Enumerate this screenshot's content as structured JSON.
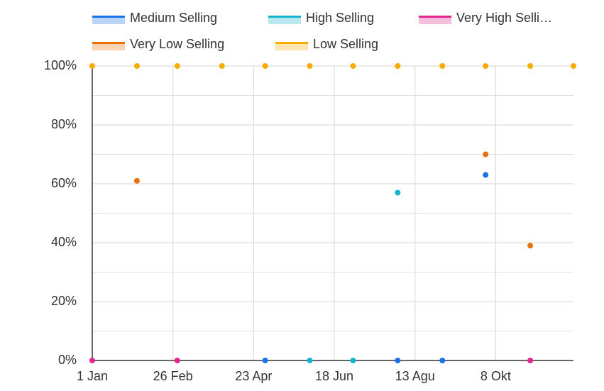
{
  "chart_data": {
    "type": "scatter",
    "x": [
      0,
      31,
      59,
      90,
      120,
      151,
      181,
      212,
      243,
      273,
      304,
      334
    ],
    "xlim": [
      0,
      334
    ],
    "xticks": [
      {
        "value": 0,
        "label": "1 Jan"
      },
      {
        "value": 56,
        "label": "26 Feb"
      },
      {
        "value": 112,
        "label": "23 Apr"
      },
      {
        "value": 168,
        "label": "18 Jun"
      },
      {
        "value": 224,
        "label": "13 Agu"
      },
      {
        "value": 280,
        "label": "8 Okt"
      }
    ],
    "ylim": [
      0,
      100
    ],
    "yticks": [
      {
        "value": 0,
        "label": "0%"
      },
      {
        "value": 20,
        "label": "20%"
      },
      {
        "value": 40,
        "label": "40%"
      },
      {
        "value": 60,
        "label": "60%"
      },
      {
        "value": 80,
        "label": "80%"
      },
      {
        "value": 100,
        "label": "100%"
      }
    ],
    "minor_yticks": [
      10,
      30,
      50,
      70,
      90
    ],
    "grid": true,
    "series": [
      {
        "name": "Medium Selling",
        "color": "#1a73e8",
        "values": [
          null,
          null,
          null,
          null,
          0,
          null,
          null,
          0,
          0,
          63,
          null,
          null
        ]
      },
      {
        "name": "High Selling",
        "color": "#12b5cb",
        "values": [
          null,
          null,
          null,
          null,
          null,
          0,
          0,
          57,
          null,
          null,
          null,
          null
        ]
      },
      {
        "name": "Very High Selli…",
        "color": "#e52592",
        "values": [
          0,
          null,
          0,
          null,
          null,
          null,
          null,
          null,
          null,
          null,
          0,
          null
        ]
      },
      {
        "name": "Very Low Selling",
        "color": "#e8710a",
        "values": [
          null,
          61,
          null,
          null,
          null,
          null,
          null,
          null,
          null,
          70,
          39,
          null
        ]
      },
      {
        "name": "Low Selling",
        "color": "#f9ab00",
        "values": [
          100,
          100,
          100,
          100,
          100,
          100,
          100,
          100,
          100,
          100,
          100,
          100
        ]
      }
    ]
  }
}
